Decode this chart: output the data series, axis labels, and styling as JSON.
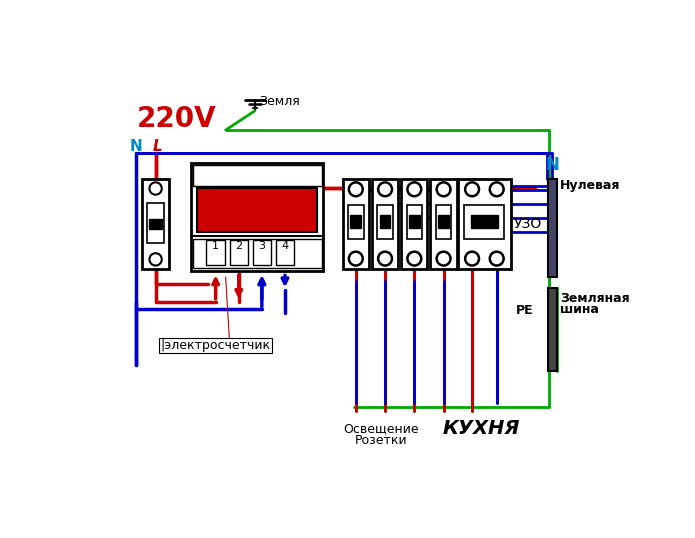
{
  "bg_color": "#ffffff",
  "text_220v": "220V",
  "text_N_left": "N",
  "text_L": "L",
  "text_ground": "Земля",
  "text_N_right": "N",
  "text_nulevaya": "Нулевая",
  "text_zemlyanaya": "Земляная",
  "text_shina": "шина",
  "text_PE": "PE",
  "text_UZO": "УЗО",
  "text_electro": "электросчетчик",
  "text_osveschenie": "Освещение",
  "text_rozetki": "Розетки",
  "text_kukhnya": "КУХНЯ",
  "color_red": "#cc0000",
  "color_blue": "#0000cc",
  "color_green": "#00aa00",
  "color_black": "#000000",
  "color_cyan": "#0088cc",
  "color_dark_blue": "#000099",
  "color_purple": "#6600cc"
}
